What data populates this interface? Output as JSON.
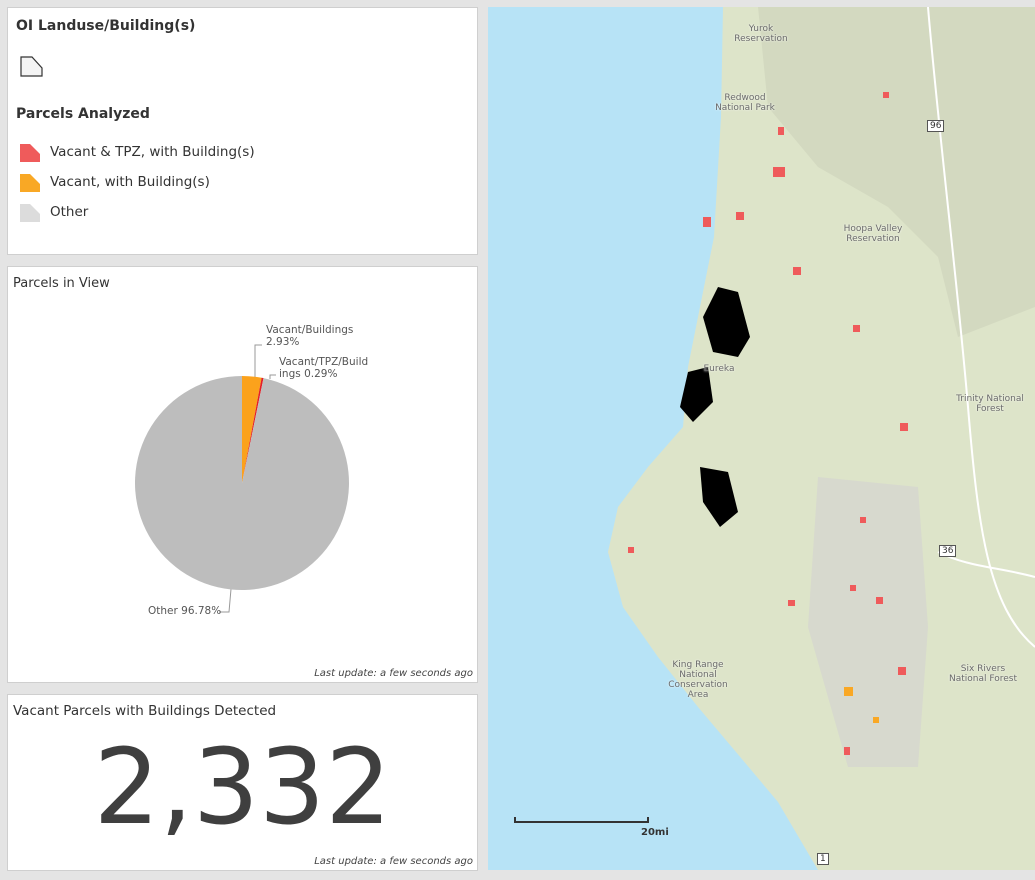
{
  "legend": {
    "title": "OI Landuse/Building(s)",
    "section": "Parcels Analyzed",
    "items": [
      {
        "label": "Vacant & TPZ, with Building(s)",
        "color": "#ef5b5b"
      },
      {
        "label": "Vacant, with Building(s)",
        "color": "#f9a825"
      },
      {
        "label": "Other",
        "color": "#dcdcdc"
      }
    ]
  },
  "chart_data": {
    "type": "pie",
    "title": "Parcels in View",
    "categories": [
      "Vacant/Buildings",
      "Vacant/TPZ/Buildings",
      "Other"
    ],
    "values": [
      2.93,
      0.29,
      96.78
    ],
    "value_labels": [
      "2.93%",
      "0.29%",
      "96.78%"
    ],
    "colors": [
      "#fba21c",
      "#e41f26",
      "#bdbdbd"
    ]
  },
  "pie_footer": "Last update: a few seconds ago",
  "indicator": {
    "title": "Vacant Parcels with Buildings Detected",
    "value": "2,332",
    "footer": "Last update: a few seconds ago"
  },
  "map": {
    "places": [
      "Yurok Reservation",
      "Redwood National Park",
      "Hoopa Valley Reservation",
      "Eureka",
      "Trinity National Forest",
      "King Range National Conservation Area",
      "Six Rivers National Forest"
    ],
    "shields": [
      "96",
      "36",
      "1"
    ],
    "scale": "20mi"
  }
}
